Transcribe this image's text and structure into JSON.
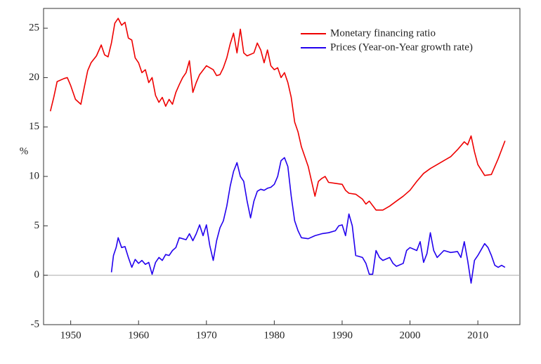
{
  "chart_data": {
    "type": "line",
    "y_label": "%",
    "legend": "upper right",
    "xlim": [
      1946,
      2016.2
    ],
    "xticks": [
      1950,
      1960,
      1970,
      1980,
      1990,
      2000,
      2010
    ],
    "ylim": [
      -5,
      27
    ],
    "yticks": [
      -5,
      0,
      5,
      10,
      15,
      20,
      25
    ],
    "zero_line": true,
    "series": [
      {
        "name": "Monetary financing ratio",
        "color": "#ee0000",
        "x": [
          1947,
          1947.5,
          1948,
          1949,
          1949.5,
          1950,
          1950.7,
          1951.5,
          1952,
          1952.5,
          1953,
          1953.8,
          1954.5,
          1955,
          1955.5,
          1956,
          1956.5,
          1957,
          1957.5,
          1958,
          1958.5,
          1959,
          1959.5,
          1960,
          1960.5,
          1961,
          1961.5,
          1962,
          1962.5,
          1963,
          1963.5,
          1964,
          1964.5,
          1965,
          1965.5,
          1966,
          1966.5,
          1967,
          1967.5,
          1968,
          1968.5,
          1969,
          1970,
          1971,
          1971.5,
          1972,
          1972.5,
          1973,
          1973.5,
          1974,
          1974.5,
          1975,
          1975.5,
          1976,
          1977,
          1977.5,
          1978,
          1978.5,
          1979,
          1979.5,
          1980,
          1980.5,
          1981,
          1981.5,
          1982,
          1982.5,
          1983,
          1983.5,
          1984,
          1985,
          1985.5,
          1986,
          1986.5,
          1987,
          1987.5,
          1988,
          1989,
          1990,
          1990.5,
          1991,
          1992,
          1993,
          1993.5,
          1994,
          1995,
          1996,
          1997,
          1998,
          1999,
          2000,
          2001,
          2002,
          2003,
          2004,
          2005,
          2006,
          2007,
          2008,
          2008.5,
          2009,
          2009.5,
          2010,
          2011,
          2012,
          2013,
          2014
        ],
        "values": [
          16.6,
          18,
          19.6,
          19.9,
          20,
          19.2,
          17.8,
          17.3,
          19,
          20.7,
          21.5,
          22.2,
          23.3,
          22.3,
          22.1,
          23.5,
          25.5,
          26,
          25.3,
          25.6,
          24,
          23.8,
          22,
          21.5,
          20.5,
          20.8,
          19.5,
          20,
          18.2,
          17.5,
          18,
          17.1,
          17.8,
          17.3,
          18.5,
          19.3,
          20,
          20.5,
          21.7,
          18.5,
          19.5,
          20.3,
          21.2,
          20.8,
          20.2,
          20.3,
          21,
          22,
          23.4,
          24.5,
          22.5,
          24.9,
          22.5,
          22.2,
          22.5,
          23.5,
          22.8,
          21.5,
          22.8,
          21.2,
          20.8,
          21,
          20,
          20.5,
          19.5,
          18,
          15.5,
          14.5,
          13,
          11,
          9.5,
          8,
          9.5,
          9.8,
          10,
          9.4,
          9.3,
          9.2,
          8.6,
          8.3,
          8.2,
          7.7,
          7.2,
          7.5,
          6.6,
          6.6,
          7,
          7.5,
          8,
          8.6,
          9.5,
          10.3,
          10.8,
          11.2,
          11.6,
          12,
          12.7,
          13.5,
          13.2,
          14.1,
          12.5,
          11.2,
          10.1,
          10.2,
          11.8,
          13.6
        ]
      },
      {
        "name": "Prices (Year-on-Year growth rate)",
        "color": "#2200ee",
        "x": [
          1956,
          1956.3,
          1956.7,
          1957,
          1957.5,
          1958,
          1958.5,
          1959,
          1959.5,
          1960,
          1960.5,
          1961,
          1961.5,
          1962,
          1962.5,
          1963,
          1963.5,
          1964,
          1964.5,
          1965,
          1965.5,
          1966,
          1967,
          1967.5,
          1968,
          1968.5,
          1969,
          1969.5,
          1970,
          1970.5,
          1971,
          1971.5,
          1972,
          1972.5,
          1973,
          1973.5,
          1974,
          1974.5,
          1975,
          1975.5,
          1976,
          1976.5,
          1977,
          1977.5,
          1978,
          1978.5,
          1979,
          1979.5,
          1980,
          1980.5,
          1981,
          1981.5,
          1982,
          1982.5,
          1983,
          1983.5,
          1984,
          1985,
          1986,
          1987,
          1988,
          1989,
          1989.5,
          1990,
          1990.5,
          1991,
          1991.5,
          1992,
          1993,
          1993.5,
          1994,
          1994.5,
          1995,
          1995.5,
          1996,
          1997,
          1997.5,
          1998,
          1999,
          1999.5,
          2000,
          2001,
          2001.5,
          2002,
          2002.5,
          2003,
          2003.5,
          2004,
          2005,
          2006,
          2007,
          2007.5,
          2008,
          2008.5,
          2009,
          2009.5,
          2010,
          2011,
          2011.5,
          2012,
          2012.5,
          2013,
          2013.5,
          2014
        ],
        "values": [
          0.3,
          2,
          2.8,
          3.8,
          2.8,
          2.9,
          1.8,
          0.8,
          1.6,
          1.2,
          1.5,
          1.1,
          1.3,
          0.1,
          1.3,
          1.8,
          1.5,
          2.1,
          2,
          2.5,
          2.8,
          3.8,
          3.6,
          4.2,
          3.5,
          4.2,
          5.1,
          4,
          5.1,
          3,
          1.5,
          3.5,
          4.8,
          5.5,
          7,
          9,
          10.5,
          11.4,
          10,
          9.5,
          7.5,
          5.8,
          7.5,
          8.5,
          8.7,
          8.6,
          8.8,
          8.9,
          9.2,
          10,
          11.6,
          11.9,
          11,
          8,
          5.5,
          4.5,
          3.8,
          3.7,
          4,
          4.2,
          4.3,
          4.5,
          5,
          5.1,
          4,
          6.2,
          5,
          2,
          1.8,
          1.2,
          0.1,
          0.1,
          2.5,
          1.8,
          1.5,
          1.8,
          1.2,
          0.9,
          1.2,
          2.5,
          2.8,
          2.5,
          3.4,
          1.3,
          2.2,
          4.3,
          2.5,
          1.8,
          2.5,
          2.3,
          2.4,
          1.8,
          3.4,
          1.5,
          -0.8,
          1.5,
          2,
          3.2,
          2.8,
          2,
          1,
          0.8,
          1,
          0.8
        ]
      }
    ]
  }
}
